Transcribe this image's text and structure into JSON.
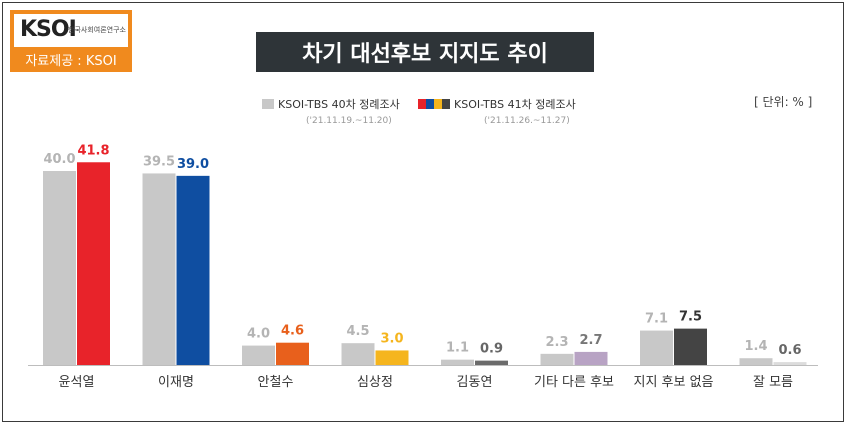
{
  "logo": {
    "brand": "KSOI",
    "org": "한국사회여론연구소",
    "source_label": "자료제공 : KSOI"
  },
  "chart_data": {
    "type": "bar",
    "title": "차기 대선후보 지지도 추이",
    "unit": "[ 단위: % ]",
    "categories": [
      "윤석열",
      "이재명",
      "안철수",
      "심상정",
      "김동연",
      "기타 다른 후보",
      "지지 후보 없음",
      "잘 모름"
    ],
    "series": [
      {
        "name": "KSOI-TBS 40차 정례조사",
        "period": "('21.11.19.~11.20)",
        "values": [
          40.0,
          39.5,
          4.0,
          4.5,
          1.1,
          2.3,
          7.1,
          1.4
        ]
      },
      {
        "name": "KSOI-TBS 41차 정례조사",
        "period": "('21.11.26.~11.27)",
        "values": [
          41.8,
          39.0,
          4.6,
          3.0,
          0.9,
          2.7,
          7.5,
          0.6
        ]
      }
    ],
    "colors": {
      "series1": "#c8c8c8",
      "series1_label": "#b4b4b4",
      "series2": [
        "#e8232a",
        "#0f4ea1",
        "#e8601c",
        "#f5b51e",
        "#6b6b6b",
        "#b8a3c4",
        "#444444",
        "#dcdcdc"
      ],
      "series2_label": [
        "#e8232a",
        "#0f4ea1",
        "#e8601c",
        "#f5b51e",
        "#666666",
        "#777777",
        "#333333",
        "#666666"
      ]
    },
    "ylim": [
      0,
      45
    ],
    "grid": false,
    "legend": "top"
  }
}
